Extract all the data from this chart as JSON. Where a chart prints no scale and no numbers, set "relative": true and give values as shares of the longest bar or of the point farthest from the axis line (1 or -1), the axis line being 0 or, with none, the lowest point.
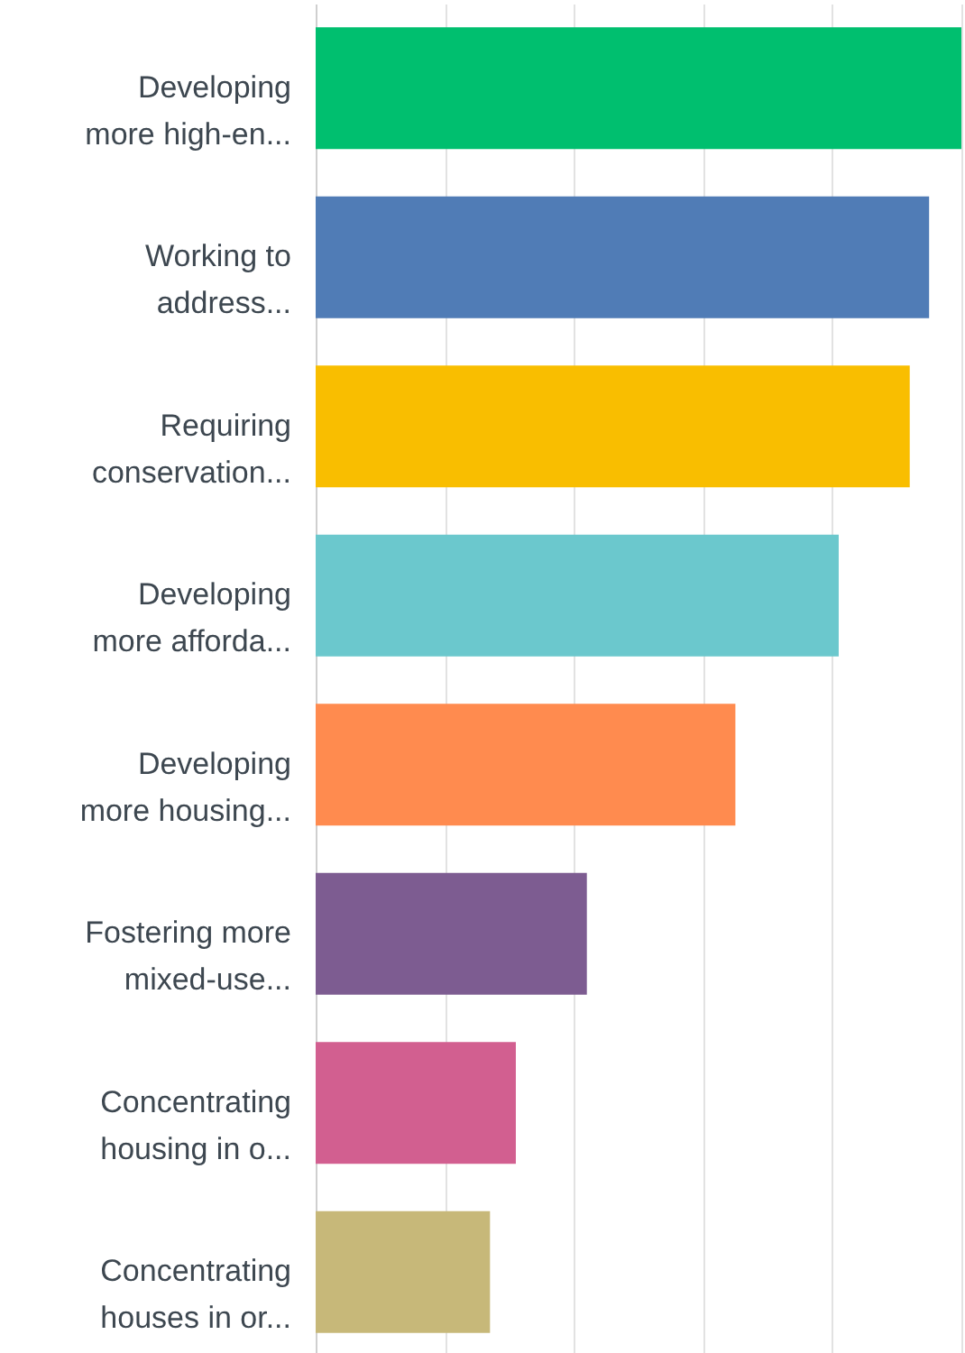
{
  "chart_data": {
    "type": "bar",
    "orientation": "horizontal",
    "relative": true,
    "grid": "x",
    "categories": [
      "Developing more high-en...",
      "Working to address...",
      "Requiring conservation...",
      "Developing more afforda...",
      "Developing more housing...",
      "Fostering more mixed-use...",
      "Concentrating housing in o...",
      "Concentrating houses in or..."
    ],
    "values": [
      1,
      0.95,
      0.92,
      0.81,
      0.65,
      0.42,
      0.31,
      0.27
    ],
    "colors": [
      "#00bf6f",
      "#507cb6",
      "#f9be00",
      "#6bc8cd",
      "#ff8b4f",
      "#7d5c91",
      "#d25f90",
      "#c7b879"
    ]
  }
}
